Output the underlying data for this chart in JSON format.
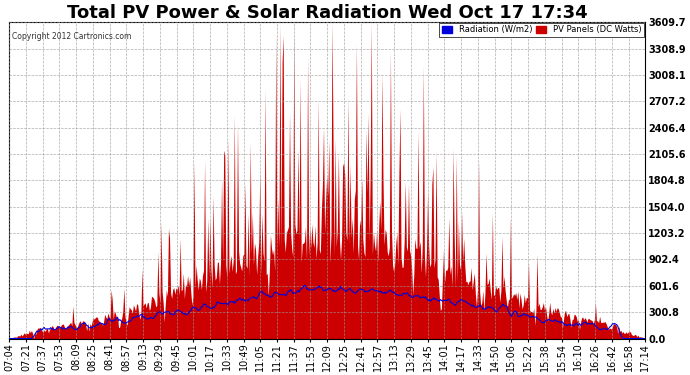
{
  "title": "Total PV Power & Solar Radiation Wed Oct 17 17:34",
  "copyright": "Copyright 2012 Cartronics.com",
  "legend_radiation": "Radiation (W/m2)",
  "legend_pv": "PV Panels (DC Watts)",
  "ylim": [
    0.0,
    3609.7
  ],
  "yticks": [
    0.0,
    300.8,
    601.6,
    902.4,
    1203.2,
    1504.0,
    1804.8,
    2105.6,
    2406.4,
    2707.2,
    3008.1,
    3308.9,
    3609.7
  ],
  "background_color": "#ffffff",
  "plot_bg_color": "#ffffff",
  "grid_color": "#999999",
  "pv_fill_color": "#cc0000",
  "radiation_line_color": "#0000dd",
  "title_fontsize": 13,
  "label_fontsize": 7,
  "time_labels": [
    "07:04",
    "07:21",
    "07:37",
    "07:53",
    "08:09",
    "08:25",
    "08:41",
    "08:57",
    "09:13",
    "09:29",
    "09:45",
    "10:01",
    "10:17",
    "10:33",
    "10:49",
    "11:05",
    "11:21",
    "11:37",
    "11:53",
    "12:09",
    "12:25",
    "12:41",
    "12:57",
    "13:13",
    "13:29",
    "13:45",
    "14:01",
    "14:17",
    "14:33",
    "14:50",
    "15:06",
    "15:22",
    "15:38",
    "15:54",
    "16:10",
    "16:26",
    "16:42",
    "16:58",
    "17:14"
  ]
}
